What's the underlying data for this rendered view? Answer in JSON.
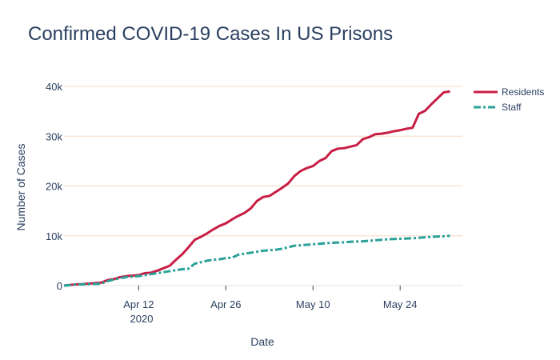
{
  "chart_data": {
    "type": "line",
    "title": "Confirmed COVID-19 Cases In US Prisons",
    "xlabel": "Date",
    "ylabel": "Number of Cases",
    "x_range": [
      "2020-03-31",
      "2020-06-03"
    ],
    "ylim": [
      0,
      40000
    ],
    "y_ticks": [
      0,
      10000,
      20000,
      30000,
      40000
    ],
    "y_tick_labels": [
      "0",
      "10k",
      "20k",
      "30k",
      "40k"
    ],
    "x_ticks": [
      "2020-04-12",
      "2020-04-26",
      "2020-05-10",
      "2020-05-24"
    ],
    "x_tick_labels": [
      "Apr 12",
      "Apr 26",
      "May 10",
      "May 24"
    ],
    "x_tick_year_label": "2020",
    "grid": "horizontal",
    "legend_position": "top-right",
    "series": [
      {
        "name": "Residents",
        "color": "#c81e45",
        "dash": "solid",
        "points": [
          [
            "2020-03-31",
            0
          ],
          [
            "2020-04-01",
            150
          ],
          [
            "2020-04-02",
            250
          ],
          [
            "2020-04-03",
            300
          ],
          [
            "2020-04-04",
            400
          ],
          [
            "2020-04-05",
            500
          ],
          [
            "2020-04-06",
            600
          ],
          [
            "2020-04-07",
            1100
          ],
          [
            "2020-04-08",
            1300
          ],
          [
            "2020-04-09",
            1700
          ],
          [
            "2020-04-10",
            1900
          ],
          [
            "2020-04-11",
            2000
          ],
          [
            "2020-04-12",
            2100
          ],
          [
            "2020-04-13",
            2500
          ],
          [
            "2020-04-14",
            2600
          ],
          [
            "2020-04-15",
            3000
          ],
          [
            "2020-04-16",
            3500
          ],
          [
            "2020-04-17",
            4000
          ],
          [
            "2020-04-18",
            5200
          ],
          [
            "2020-04-19",
            6300
          ],
          [
            "2020-04-20",
            7700
          ],
          [
            "2020-04-21",
            9200
          ],
          [
            "2020-04-22",
            9800
          ],
          [
            "2020-04-23",
            10500
          ],
          [
            "2020-04-24",
            11300
          ],
          [
            "2020-04-25",
            12000
          ],
          [
            "2020-04-26",
            12500
          ],
          [
            "2020-04-27",
            13300
          ],
          [
            "2020-04-28",
            14000
          ],
          [
            "2020-04-29",
            14600
          ],
          [
            "2020-04-30",
            15500
          ],
          [
            "2020-05-01",
            17000
          ],
          [
            "2020-05-02",
            17800
          ],
          [
            "2020-05-03",
            18000
          ],
          [
            "2020-05-04",
            18800
          ],
          [
            "2020-05-05",
            19600
          ],
          [
            "2020-05-06",
            20500
          ],
          [
            "2020-05-07",
            22000
          ],
          [
            "2020-05-08",
            23000
          ],
          [
            "2020-05-09",
            23600
          ],
          [
            "2020-05-10",
            24000
          ],
          [
            "2020-05-11",
            25000
          ],
          [
            "2020-05-12",
            25600
          ],
          [
            "2020-05-13",
            27000
          ],
          [
            "2020-05-14",
            27500
          ],
          [
            "2020-05-15",
            27600
          ],
          [
            "2020-05-16",
            27900
          ],
          [
            "2020-05-17",
            28200
          ],
          [
            "2020-05-18",
            29400
          ],
          [
            "2020-05-19",
            29800
          ],
          [
            "2020-05-20",
            30400
          ],
          [
            "2020-05-21",
            30500
          ],
          [
            "2020-05-22",
            30700
          ],
          [
            "2020-05-23",
            31000
          ],
          [
            "2020-05-24",
            31200
          ],
          [
            "2020-05-25",
            31500
          ],
          [
            "2020-05-26",
            31700
          ],
          [
            "2020-05-27",
            34500
          ],
          [
            "2020-05-28",
            35100
          ],
          [
            "2020-05-29",
            36400
          ],
          [
            "2020-05-30",
            37600
          ],
          [
            "2020-05-31",
            38800
          ],
          [
            "2020-06-01",
            39000
          ]
        ]
      },
      {
        "name": "Staff",
        "color": "#2aa198",
        "dash": "dashdot",
        "points": [
          [
            "2020-03-31",
            0
          ],
          [
            "2020-04-01",
            100
          ],
          [
            "2020-04-02",
            200
          ],
          [
            "2020-04-03",
            250
          ],
          [
            "2020-04-04",
            300
          ],
          [
            "2020-04-05",
            350
          ],
          [
            "2020-04-06",
            400
          ],
          [
            "2020-04-07",
            900
          ],
          [
            "2020-04-08",
            1200
          ],
          [
            "2020-04-09",
            1500
          ],
          [
            "2020-04-10",
            1700
          ],
          [
            "2020-04-11",
            1800
          ],
          [
            "2020-04-12",
            1900
          ],
          [
            "2020-04-13",
            2100
          ],
          [
            "2020-04-14",
            2300
          ],
          [
            "2020-04-15",
            2500
          ],
          [
            "2020-04-16",
            2700
          ],
          [
            "2020-04-17",
            2900
          ],
          [
            "2020-04-18",
            3100
          ],
          [
            "2020-04-19",
            3300
          ],
          [
            "2020-04-20",
            3400
          ],
          [
            "2020-04-21",
            4400
          ],
          [
            "2020-04-22",
            4700
          ],
          [
            "2020-04-23",
            5000
          ],
          [
            "2020-04-24",
            5200
          ],
          [
            "2020-04-25",
            5300
          ],
          [
            "2020-04-26",
            5500
          ],
          [
            "2020-04-27",
            5600
          ],
          [
            "2020-04-28",
            6200
          ],
          [
            "2020-04-29",
            6400
          ],
          [
            "2020-04-30",
            6600
          ],
          [
            "2020-05-01",
            6800
          ],
          [
            "2020-05-02",
            7000
          ],
          [
            "2020-05-03",
            7100
          ],
          [
            "2020-05-04",
            7200
          ],
          [
            "2020-05-05",
            7400
          ],
          [
            "2020-05-06",
            7700
          ],
          [
            "2020-05-07",
            8000
          ],
          [
            "2020-05-08",
            8100
          ],
          [
            "2020-05-09",
            8200
          ],
          [
            "2020-05-10",
            8300
          ],
          [
            "2020-05-11",
            8400
          ],
          [
            "2020-05-12",
            8500
          ],
          [
            "2020-05-13",
            8600
          ],
          [
            "2020-05-14",
            8650
          ],
          [
            "2020-05-15",
            8700
          ],
          [
            "2020-05-16",
            8800
          ],
          [
            "2020-05-17",
            8850
          ],
          [
            "2020-05-18",
            8900
          ],
          [
            "2020-05-19",
            9000
          ],
          [
            "2020-05-20",
            9100
          ],
          [
            "2020-05-21",
            9200
          ],
          [
            "2020-05-22",
            9300
          ],
          [
            "2020-05-23",
            9350
          ],
          [
            "2020-05-24",
            9400
          ],
          [
            "2020-05-25",
            9450
          ],
          [
            "2020-05-26",
            9500
          ],
          [
            "2020-05-27",
            9600
          ],
          [
            "2020-05-28",
            9700
          ],
          [
            "2020-05-29",
            9800
          ],
          [
            "2020-05-30",
            9850
          ],
          [
            "2020-05-31",
            9900
          ],
          [
            "2020-06-01",
            10000
          ]
        ]
      }
    ]
  }
}
